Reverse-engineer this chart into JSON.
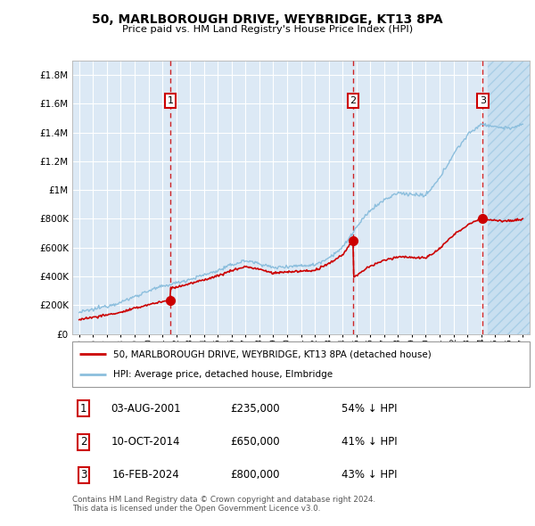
{
  "title": "50, MARLBOROUGH DRIVE, WEYBRIDGE, KT13 8PA",
  "subtitle": "Price paid vs. HM Land Registry's House Price Index (HPI)",
  "ytick_values": [
    0,
    200000,
    400000,
    600000,
    800000,
    1000000,
    1200000,
    1400000,
    1600000,
    1800000
  ],
  "ylim": [
    0,
    1900000
  ],
  "xlim_start": 1994.5,
  "xlim_end": 2027.5,
  "background_color": "#ffffff",
  "chart_bg_color": "#dce9f5",
  "grid_color": "#ffffff",
  "hpi_color": "#8bbedd",
  "price_color": "#cc0000",
  "vline_color": "#cc0000",
  "legend_label_price": "50, MARLBOROUGH DRIVE, WEYBRIDGE, KT13 8PA (detached house)",
  "legend_label_hpi": "HPI: Average price, detached house, Elmbridge",
  "sales": [
    {
      "num": 1,
      "date": "03-AUG-2001",
      "year": 2001.58,
      "price": 235000,
      "hpi_pct": "54% ↓ HPI"
    },
    {
      "num": 2,
      "date": "10-OCT-2014",
      "year": 2014.77,
      "price": 650000,
      "hpi_pct": "41% ↓ HPI"
    },
    {
      "num": 3,
      "date": "16-FEB-2024",
      "year": 2024.12,
      "price": 800000,
      "hpi_pct": "43% ↓ HPI"
    }
  ],
  "footer": "Contains HM Land Registry data © Crown copyright and database right 2024.\nThis data is licensed under the Open Government Licence v3.0.",
  "note_box_color": "#cc0000",
  "hatch_start": 2024.5
}
